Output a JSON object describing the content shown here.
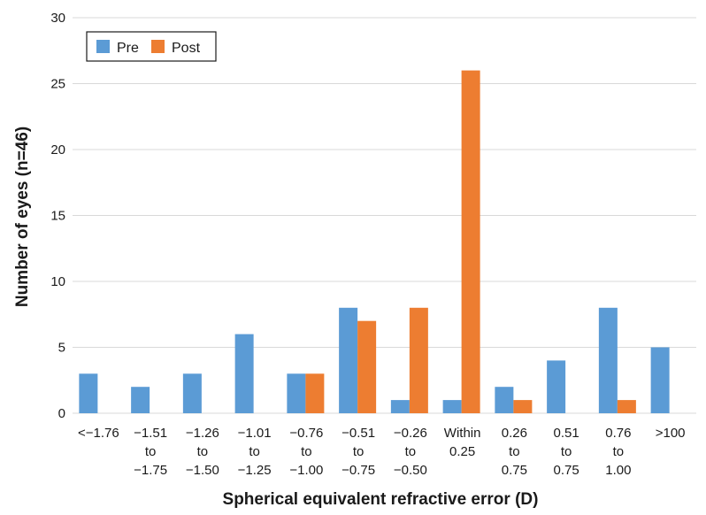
{
  "chart_data": {
    "type": "bar",
    "categories": [
      [
        "<−1.76"
      ],
      [
        "−1.51",
        "to",
        "−1.75"
      ],
      [
        "−1.26",
        "to",
        "−1.50"
      ],
      [
        "−1.01",
        "to",
        "−1.25"
      ],
      [
        "−0.76",
        "to",
        "−1.00"
      ],
      [
        "−0.51",
        "to",
        "−0.75"
      ],
      [
        "−0.26",
        "to",
        "−0.50"
      ],
      [
        "Within",
        "0.25"
      ],
      [
        "0.26",
        "to",
        "0.75"
      ],
      [
        "0.51",
        "to",
        "0.75"
      ],
      [
        "0.76",
        "to",
        "1.00"
      ],
      [
        ">100"
      ]
    ],
    "series": [
      {
        "name": "Pre",
        "color": "#5b9bd5",
        "values": [
          3,
          2,
          3,
          6,
          3,
          8,
          1,
          1,
          2,
          4,
          8,
          5
        ]
      },
      {
        "name": "Post",
        "color": "#ed7d31",
        "values": [
          0,
          0,
          0,
          0,
          3,
          7,
          8,
          26,
          1,
          0,
          1,
          0
        ]
      }
    ],
    "xlabel": "Spherical equivalent refractive error (D)",
    "ylabel": "Number of eyes (n=46)",
    "ylim": [
      0,
      30
    ],
    "yticks": [
      0,
      5,
      10,
      15,
      20,
      25,
      30
    ],
    "grid": true,
    "legend": "top-left"
  }
}
